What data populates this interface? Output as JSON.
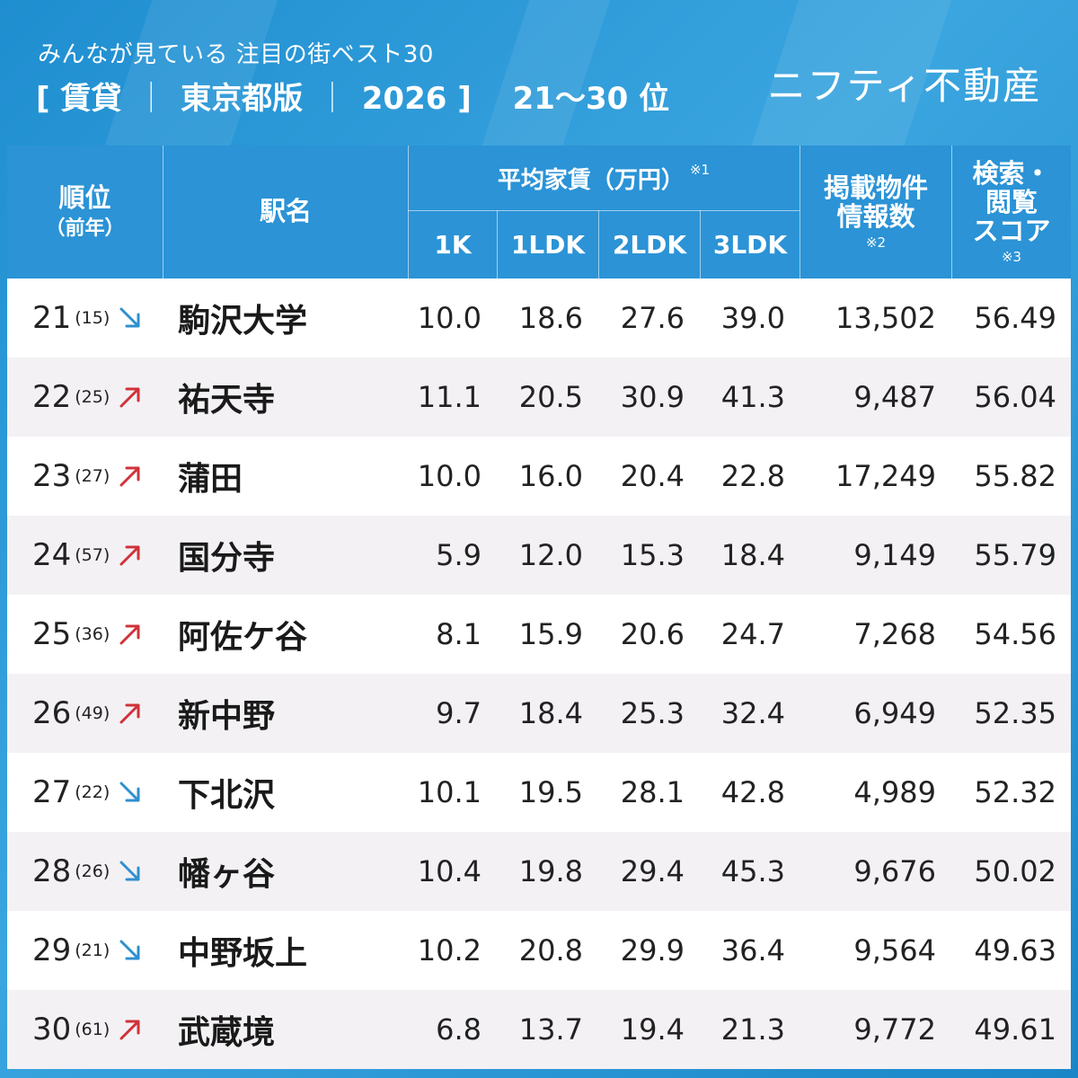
{
  "header": {
    "subtitle": "みんなが見ている 注目の街ベスト30",
    "bracket_open": "[",
    "category": "賃貸",
    "edition": "東京都版",
    "year": "2026",
    "bracket_close": "]",
    "separator": "｜",
    "range": "21～30 位",
    "brand": "ニフティ不動産"
  },
  "colors": {
    "header_bg": "#2b93d6",
    "up_arrow": "#d0323a",
    "down_arrow": "#2f8fcf",
    "row_alt": "#f3f1f4"
  },
  "chart_data": {
    "type": "table",
    "columns": {
      "rank": "順位",
      "rank_sub": "（前年）",
      "station": "駅名",
      "rent_group": "平均家賃（万円）",
      "rent_note": "※1",
      "k1": "1K",
      "ldk1": "1LDK",
      "ldk2": "2LDK",
      "ldk3": "3LDK",
      "listings_line1": "掲載物件",
      "listings_line2": "情報数",
      "listings_note": "※2",
      "score_line1": "検索・",
      "score_line2": "閲覧",
      "score_line3": "スコア",
      "score_note": "※3"
    },
    "rows": [
      {
        "rank": "21",
        "prev": "(15)",
        "trend": "down",
        "station": "駒沢大学",
        "k1": "10.0",
        "ldk1": "18.6",
        "ldk2": "27.6",
        "ldk3": "39.0",
        "listings": "13,502",
        "score": "56.49"
      },
      {
        "rank": "22",
        "prev": "(25)",
        "trend": "up",
        "station": "祐天寺",
        "k1": "11.1",
        "ldk1": "20.5",
        "ldk2": "30.9",
        "ldk3": "41.3",
        "listings": "9,487",
        "score": "56.04"
      },
      {
        "rank": "23",
        "prev": "(27)",
        "trend": "up",
        "station": "蒲田",
        "k1": "10.0",
        "ldk1": "16.0",
        "ldk2": "20.4",
        "ldk3": "22.8",
        "listings": "17,249",
        "score": "55.82"
      },
      {
        "rank": "24",
        "prev": "(57)",
        "trend": "up",
        "station": "国分寺",
        "k1": "5.9",
        "ldk1": "12.0",
        "ldk2": "15.3",
        "ldk3": "18.4",
        "listings": "9,149",
        "score": "55.79"
      },
      {
        "rank": "25",
        "prev": "(36)",
        "trend": "up",
        "station": "阿佐ケ谷",
        "k1": "8.1",
        "ldk1": "15.9",
        "ldk2": "20.6",
        "ldk3": "24.7",
        "listings": "7,268",
        "score": "54.56"
      },
      {
        "rank": "26",
        "prev": "(49)",
        "trend": "up",
        "station": "新中野",
        "k1": "9.7",
        "ldk1": "18.4",
        "ldk2": "25.3",
        "ldk3": "32.4",
        "listings": "6,949",
        "score": "52.35"
      },
      {
        "rank": "27",
        "prev": "(22)",
        "trend": "down",
        "station": "下北沢",
        "k1": "10.1",
        "ldk1": "19.5",
        "ldk2": "28.1",
        "ldk3": "42.8",
        "listings": "4,989",
        "score": "52.32"
      },
      {
        "rank": "28",
        "prev": "(26)",
        "trend": "down",
        "station": "幡ヶ谷",
        "k1": "10.4",
        "ldk1": "19.8",
        "ldk2": "29.4",
        "ldk3": "45.3",
        "listings": "9,676",
        "score": "50.02"
      },
      {
        "rank": "29",
        "prev": "(21)",
        "trend": "down",
        "station": "中野坂上",
        "k1": "10.2",
        "ldk1": "20.8",
        "ldk2": "29.9",
        "ldk3": "36.4",
        "listings": "9,564",
        "score": "49.63"
      },
      {
        "rank": "30",
        "prev": "(61)",
        "trend": "up",
        "station": "武蔵境",
        "k1": "6.8",
        "ldk1": "13.7",
        "ldk2": "19.4",
        "ldk3": "21.3",
        "listings": "9,772",
        "score": "49.61"
      }
    ]
  }
}
